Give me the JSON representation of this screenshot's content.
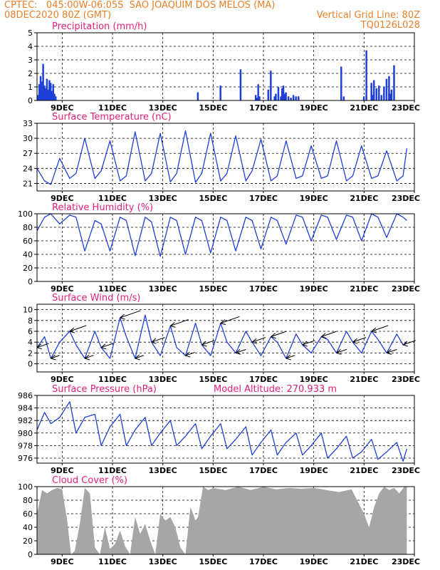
{
  "header": {
    "line1_left": "CPTEC:   045:00W-06:05S  SAO JOAQUIM DOS MELOS (MA)",
    "line2_left": "08DEC2020 80Z (GMT)",
    "line2_right": "Vertical Grid Line: 80Z",
    "line3_right": "TQ0126L028"
  },
  "colors": {
    "header": "#e8802a",
    "panel_title": "#e0207a",
    "series": "#1f3fd9",
    "bars": "#1f3fd9",
    "cloud": "#a6a6a6",
    "arrow": "#000000"
  },
  "x_tick_labels": [
    "9DEC",
    "11DEC",
    "13DEC",
    "15DEC",
    "17DEC",
    "19DEC",
    "21DEC",
    "23DEC"
  ],
  "chart_data": [
    {
      "type": "bar",
      "title": "Precipitation (mm/h)",
      "ylim": [
        0,
        5
      ],
      "yticks": [
        0,
        1,
        2,
        3,
        4,
        5
      ],
      "x_days_from_08dec": [
        0.05,
        0.1,
        0.15,
        0.2,
        0.25,
        0.3,
        0.35,
        0.4,
        0.45,
        0.5,
        0.55,
        0.6,
        0.65,
        0.7,
        0.75,
        6.4,
        7.3,
        8.1,
        8.7,
        8.75,
        8.8,
        8.85,
        9.2,
        9.3,
        9.45,
        9.5,
        9.6,
        9.7,
        9.75,
        9.8,
        9.85,
        9.9,
        10.0,
        10.1,
        10.2,
        10.3,
        10.4,
        12.1,
        12.2,
        13.0,
        13.1,
        13.3,
        13.35,
        13.4,
        13.5,
        13.6,
        13.7,
        13.8,
        13.9,
        14.0,
        14.05,
        14.1,
        14.2
      ],
      "values": [
        0.4,
        1.2,
        1.8,
        1.4,
        2.7,
        1.1,
        0.9,
        1.6,
        0.8,
        1.5,
        1.3,
        0.7,
        1.2,
        0.5,
        0.3,
        0.6,
        1.1,
        2.3,
        0.4,
        0.2,
        1.2,
        0.3,
        0.8,
        2.2,
        0.3,
        0.5,
        1.0,
        0.3,
        0.9,
        1.1,
        0.5,
        0.6,
        0.3,
        0.2,
        0.4,
        0.3,
        0.3,
        2.5,
        0.3,
        0.3,
        3.7,
        1.3,
        0.4,
        1.5,
        0.9,
        1.1,
        0.4,
        1.0,
        1.6,
        1.8,
        0.5,
        0.8,
        2.6
      ]
    },
    {
      "type": "line",
      "title": "Surface Temperature (nC)",
      "ylim": [
        19.5,
        33
      ],
      "yticks": [
        21,
        24,
        27,
        30,
        33
      ],
      "x_days_from_08dec": [
        0,
        0.3,
        0.55,
        0.9,
        1.3,
        1.55,
        1.9,
        2.3,
        2.55,
        2.9,
        3.3,
        3.55,
        3.9,
        4.3,
        4.55,
        4.9,
        5.3,
        5.55,
        5.9,
        6.3,
        6.55,
        6.9,
        7.3,
        7.55,
        7.9,
        8.3,
        8.55,
        8.9,
        9.3,
        9.55,
        9.9,
        10.3,
        10.55,
        10.9,
        11.3,
        11.55,
        11.9,
        12.3,
        12.55,
        12.9,
        13.3,
        13.55,
        13.9,
        14.3,
        14.55,
        14.7
      ],
      "values": [
        24,
        21.5,
        20.8,
        26,
        22,
        23,
        30,
        22,
        23.5,
        29.5,
        21.5,
        22.5,
        31.3,
        21.5,
        23,
        31,
        21.3,
        23,
        31.5,
        21.2,
        23,
        31,
        21.5,
        23,
        30.5,
        21.5,
        23.5,
        29.8,
        21.5,
        22.5,
        29.5,
        22,
        22.5,
        28.5,
        22,
        22.5,
        29.5,
        21.5,
        22.5,
        28.5,
        22,
        22.5,
        27.5,
        21.5,
        22.5,
        28,
        24.5
      ]
    },
    {
      "type": "line",
      "title": "Relative Humidity (%)",
      "ylim": [
        0,
        100
      ],
      "yticks": [
        0,
        20,
        40,
        60,
        80,
        100
      ],
      "x_days_from_08dec": [
        0,
        0.3,
        0.55,
        0.9,
        1.3,
        1.55,
        1.9,
        2.3,
        2.55,
        2.9,
        3.3,
        3.55,
        3.9,
        4.3,
        4.55,
        4.9,
        5.3,
        5.55,
        5.9,
        6.3,
        6.55,
        6.9,
        7.3,
        7.55,
        7.9,
        8.3,
        8.55,
        8.9,
        9.3,
        9.55,
        9.9,
        10.3,
        10.55,
        10.9,
        11.3,
        11.55,
        11.9,
        12.3,
        12.55,
        12.9,
        13.3,
        13.55,
        13.9,
        14.3,
        14.55,
        14.7
      ],
      "values": [
        75,
        95,
        100,
        85,
        98,
        95,
        45,
        90,
        85,
        45,
        95,
        90,
        38,
        95,
        88,
        37,
        95,
        90,
        40,
        95,
        90,
        42,
        95,
        90,
        45,
        95,
        90,
        48,
        95,
        90,
        55,
        98,
        95,
        60,
        98,
        95,
        62,
        98,
        95,
        60,
        100,
        95,
        65,
        100,
        95,
        90
      ]
    },
    {
      "type": "line",
      "title": "Surface Wind (m/s)",
      "ylim": [
        -1.5,
        11
      ],
      "yticks": [
        0,
        2,
        4,
        6,
        8,
        10
      ],
      "x_days_from_08dec": [
        0,
        0.3,
        0.55,
        0.9,
        1.3,
        1.55,
        1.9,
        2.3,
        2.55,
        2.9,
        3.3,
        3.55,
        3.9,
        4.3,
        4.55,
        4.9,
        5.3,
        5.55,
        5.9,
        6.3,
        6.55,
        6.9,
        7.3,
        7.55,
        7.9,
        8.3,
        8.55,
        8.9,
        9.3,
        9.55,
        9.9,
        10.3,
        10.55,
        10.9,
        11.3,
        11.55,
        11.9,
        12.3,
        12.55,
        12.9,
        13.3,
        13.55,
        13.9,
        14.3,
        14.55,
        14.7
      ],
      "values": [
        3,
        5,
        1,
        4,
        6,
        3.5,
        1,
        6,
        3,
        1,
        8.5,
        5,
        1,
        9,
        4,
        1.5,
        7,
        3,
        1.5,
        7.5,
        3.5,
        1.5,
        7.5,
        4,
        2,
        6,
        4,
        1.5,
        5,
        4,
        1,
        5.5,
        3.5,
        2,
        5,
        4.5,
        2,
        6,
        4,
        2,
        6,
        4.5,
        2,
        5.5,
        3.5,
        4
      ]
    },
    {
      "type": "line",
      "title": "Surface Pressure (hPa)",
      "annotation": "Model Altitude: 270.933 m",
      "ylim": [
        975.2,
        986
      ],
      "yticks": [
        976,
        978,
        980,
        982,
        984,
        986
      ],
      "x_days_from_08dec": [
        0,
        0.3,
        0.55,
        0.9,
        1.3,
        1.55,
        1.9,
        2.3,
        2.55,
        2.9,
        3.3,
        3.55,
        3.9,
        4.3,
        4.55,
        4.9,
        5.3,
        5.55,
        5.9,
        6.3,
        6.55,
        6.9,
        7.3,
        7.55,
        7.9,
        8.3,
        8.55,
        8.9,
        9.3,
        9.55,
        9.9,
        10.3,
        10.55,
        10.9,
        11.3,
        11.55,
        11.9,
        12.3,
        12.55,
        12.9,
        13.3,
        13.55,
        13.9,
        14.3,
        14.55,
        14.7
      ],
      "values": [
        980.5,
        983.3,
        981.5,
        982.5,
        985,
        980,
        982.5,
        983,
        978,
        981,
        983,
        978,
        980.5,
        982.5,
        978,
        980,
        982,
        978,
        979.5,
        981.5,
        977.5,
        979.5,
        981.5,
        977.5,
        979,
        981,
        976.5,
        978.5,
        980.5,
        976.5,
        978.5,
        980,
        976.5,
        978,
        980,
        976,
        977.5,
        979.5,
        976,
        977,
        979,
        975.8,
        977,
        978.5,
        975.5,
        977.5
      ]
    },
    {
      "type": "area",
      "title": "Cloud Cover (%)",
      "ylim": [
        0,
        100
      ],
      "yticks": [
        0,
        20,
        40,
        60,
        80,
        100
      ],
      "x_days_from_08dec": [
        0,
        0.2,
        0.4,
        0.6,
        0.8,
        1.0,
        1.2,
        1.35,
        1.5,
        1.7,
        1.9,
        2.1,
        2.3,
        2.5,
        2.7,
        2.9,
        3.1,
        3.3,
        3.5,
        3.7,
        3.9,
        4.1,
        4.3,
        4.5,
        4.7,
        4.9,
        5.1,
        5.3,
        5.5,
        5.7,
        5.9,
        6.1,
        6.3,
        6.4,
        6.6,
        6.8,
        7.0,
        7.5,
        8.0,
        8.5,
        9.0,
        9.5,
        10.0,
        10.5,
        11.0,
        11.5,
        12.0,
        12.5,
        13.0,
        13.2,
        13.4,
        13.6,
        13.8,
        14.0,
        14.2,
        14.4,
        14.6,
        14.7
      ],
      "values": [
        60,
        95,
        90,
        95,
        98,
        96,
        50,
        0,
        5,
        45,
        98,
        90,
        10,
        0,
        40,
        8,
        15,
        35,
        12,
        0,
        55,
        30,
        45,
        20,
        0,
        60,
        50,
        55,
        40,
        10,
        0,
        70,
        50,
        55,
        100,
        95,
        98,
        95,
        100,
        95,
        100,
        96,
        98,
        97,
        98,
        95,
        92,
        96,
        60,
        40,
        70,
        90,
        100,
        95,
        98,
        90,
        100,
        100
      ]
    }
  ]
}
